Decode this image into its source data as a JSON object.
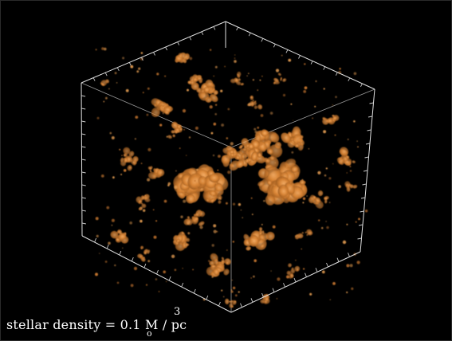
{
  "caption": {
    "label": "stellar density = 0.1 M",
    "unit": " / pc",
    "exponent": "3",
    "subscript": "o"
  },
  "colors": {
    "background": "#000000",
    "cube_edges": "#d9d9d9",
    "ticks": "#bdbdbd",
    "density_clumps": "#d07a2c",
    "density_highlight": "#f3a85c"
  },
  "subject": "3D cube of orange stellar density clumps"
}
